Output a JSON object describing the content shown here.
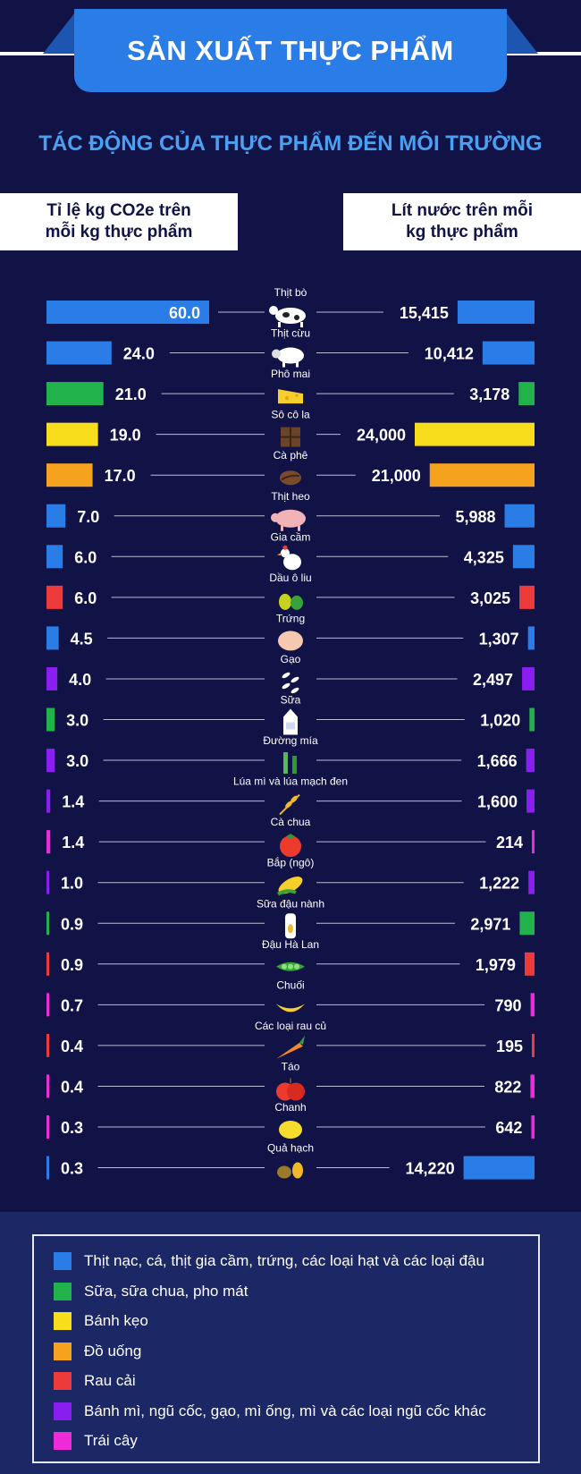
{
  "header": {
    "title": "SẢN XUẤT THỰC PHẨM",
    "subtitle": "TÁC ĐỘNG CỦA THỰC PHẨM ĐẾN MÔI TRƯỜNG"
  },
  "columns": {
    "left_line1": "Tỉ lệ kg CO2e trên",
    "left_line2": "mỗi kg thực phẩm",
    "right_line1": "Lít nước trên mỗi",
    "right_line2": "kg thực phẩm"
  },
  "colors": {
    "protein": "#2a7ce6",
    "dairy": "#21b24b",
    "confection": "#f7dd1c",
    "drinks": "#f5a21e",
    "veg": "#ee3a3a",
    "grain": "#8a1ef0",
    "fruit": "#ee2ad9"
  },
  "chart_data": {
    "type": "bar",
    "title": "TÁC ĐỘNG CỦA THỰC PHẨM ĐẾN MÔI TRƯỜNG",
    "categories": [
      "Thịt bò",
      "Thịt cừu",
      "Phô mai",
      "Sô cô la",
      "Cà phê",
      "Thịt heo",
      "Gia cầm",
      "Dầu ô liu",
      "Trứng",
      "Gạo",
      "Sữa",
      "Đường mía",
      "Lúa mì và lúa mạch đen",
      "Cà chua",
      "Bắp (ngô)",
      "Sữa đậu nành",
      "Đậu Hà Lan",
      "Chuối",
      "Các loại rau củ",
      "Táo",
      "Chanh",
      "Quả hạch"
    ],
    "series": [
      {
        "name": "Tỉ lệ kg CO2e trên mỗi kg thực phẩm",
        "labels": [
          "60.0",
          "24.0",
          "21.0",
          "19.0",
          "17.0",
          "7.0",
          "6.0",
          "6.0",
          "4.5",
          "4.0",
          "3.0",
          "3.0",
          "1.4",
          "1.4",
          "1.0",
          "0.9",
          "0.9",
          "0.7",
          "0.4",
          "0.4",
          "0.3",
          "0.3"
        ],
        "values": [
          60,
          24,
          21,
          19,
          17,
          7,
          6,
          6,
          4.5,
          4,
          3,
          3,
          1.4,
          1.4,
          1,
          0.9,
          0.9,
          0.7,
          0.4,
          0.4,
          0.3,
          0.3
        ]
      },
      {
        "name": "Lít nước trên mỗi kg thực phẩm",
        "labels": [
          "15,415",
          "10,412",
          "3,178",
          "24,000",
          "21,000",
          "5,988",
          "4,325",
          "3,025",
          "1,307",
          "2,497",
          "1,020",
          "1,666",
          "1,600",
          "214",
          "1,222",
          "2,971",
          "1,979",
          "790",
          "195",
          "822",
          "642",
          "14,220"
        ],
        "values": [
          15415,
          10412,
          3178,
          24000,
          21000,
          5988,
          4325,
          3025,
          1307,
          2497,
          1020,
          1666,
          1600,
          214,
          1222,
          2971,
          1979,
          790,
          195,
          822,
          642,
          14220
        ]
      }
    ],
    "group": [
      "protein",
      "protein",
      "dairy",
      "confection",
      "drinks",
      "protein",
      "protein",
      "veg",
      "protein",
      "grain",
      "dairy",
      "grain",
      "grain",
      "fruit",
      "grain",
      "dairy",
      "veg",
      "fruit",
      "veg",
      "fruit",
      "fruit",
      "protein"
    ],
    "icons": [
      "cow-icon",
      "sheep-icon",
      "cheese-icon",
      "chocolate-icon",
      "coffee-bean-icon",
      "pig-icon",
      "chicken-icon",
      "olive-icon",
      "egg-icon",
      "rice-icon",
      "milk-carton-icon",
      "sugarcane-icon",
      "wheat-icon",
      "tomato-icon",
      "corn-icon",
      "soy-milk-icon",
      "peas-icon",
      "banana-icon",
      "carrot-icon",
      "apple-icon",
      "lemon-icon",
      "nuts-icon"
    ]
  },
  "legend": [
    {
      "label": "Thịt nạc, cá, thịt gia cầm, trứng, các loại hạt và các loại đậu",
      "color": "#2a7ce6"
    },
    {
      "label": "Sữa, sữa chua, pho mát",
      "color": "#21b24b"
    },
    {
      "label": "Bánh kẹo",
      "color": "#f7dd1c"
    },
    {
      "label": "Đồ uống",
      "color": "#f5a21e"
    },
    {
      "label": "Rau cải",
      "color": "#ee3a3a"
    },
    {
      "label": "Bánh mì, ngũ cốc, gạo, mì ống, mì và các loại ngũ cốc khác",
      "color": "#8a1ef0"
    },
    {
      "label": "Trái cây",
      "color": "#ee2ad9"
    }
  ]
}
